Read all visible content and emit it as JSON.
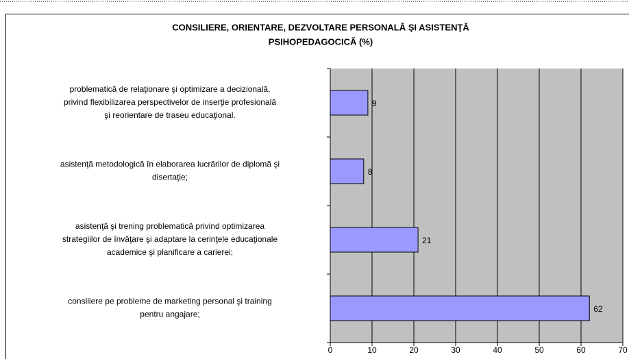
{
  "chart_data": {
    "type": "bar",
    "orientation": "horizontal",
    "title": "CONSILIERE, ORIENTARE, DEZVOLTARE PERSONALĂ ŞI ASISTENŢĂ\nPSIHOPEDAGOCICĂ (%)",
    "categories": [
      "problematică de relaţionare şi optimizare a decizională,\nprivind flexibilizarea perspectivelor de inserţie profesională\nşi reorientare de traseu educaţional.",
      "asistenţă metodologică în elaborarea lucrărilor de diplomă şi\ndisertaţie;",
      "asistenţă şi trening problematică privind optimizarea\nstrategiilor de învăţare şi adaptare la cerinţele educaţionale\nacademice şi planificare a carierei;",
      "consiliere pe probleme de marketing personal şi training\npentru angajare;"
    ],
    "values": [
      9,
      8,
      21,
      62
    ],
    "color": "#9999ff",
    "plot_background": "#c0c0c0",
    "xlim": [
      0,
      70
    ],
    "xticks": [
      0,
      10,
      20,
      30,
      40,
      50,
      60,
      70
    ],
    "grid": true
  }
}
